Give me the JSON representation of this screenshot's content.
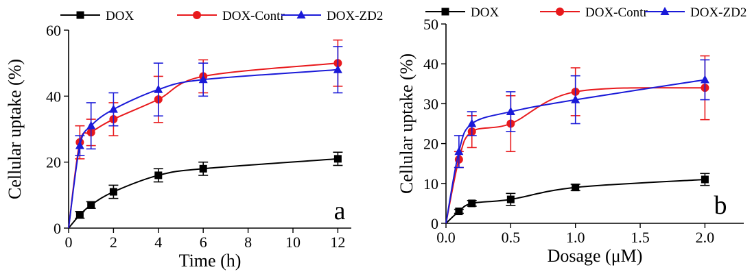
{
  "chart_data": [
    {
      "type": "line",
      "panel_label": "a",
      "xlabel": "Time (h)",
      "ylabel": "Cellular uptake (%)",
      "xlim": [
        0,
        12.6
      ],
      "ylim": [
        0,
        60
      ],
      "xticks": [
        0,
        2,
        4,
        6,
        8,
        10,
        12
      ],
      "xtick_labels": [
        "0",
        "2",
        "4",
        "6",
        "8",
        "10",
        "12"
      ],
      "yticks": [
        0,
        20,
        40,
        60
      ],
      "ytick_labels": [
        "0",
        "20",
        "40",
        "60"
      ],
      "grid": false,
      "legend_position": "top",
      "series": [
        {
          "name": "DOX",
          "color": "#000000",
          "marker": "square",
          "x": [
            0,
            0.5,
            1,
            2,
            4,
            6,
            12
          ],
          "y": [
            0,
            4,
            7,
            11,
            16,
            18,
            21
          ],
          "err": [
            0,
            1,
            1,
            2,
            2,
            2,
            2
          ]
        },
        {
          "name": "DOX-Contr",
          "color": "#e8191c",
          "marker": "circle",
          "x": [
            0,
            0.5,
            1,
            2,
            4,
            6,
            12
          ],
          "y": [
            0,
            26,
            29,
            33,
            39,
            46,
            50
          ],
          "err": [
            0,
            5,
            4,
            5,
            7,
            5,
            7
          ]
        },
        {
          "name": "DOX-ZD2",
          "color": "#1a1ad8",
          "marker": "triangle",
          "x": [
            0,
            0.5,
            1,
            2,
            4,
            6,
            12
          ],
          "y": [
            0,
            25,
            31,
            36,
            42,
            45,
            48
          ],
          "err": [
            0,
            3,
            7,
            5,
            8,
            5,
            7
          ]
        }
      ]
    },
    {
      "type": "line",
      "panel_label": "b",
      "xlabel": "Dosage (μM)",
      "ylabel": "Cellular uptake (%)",
      "xlim": [
        0,
        2.3
      ],
      "ylim": [
        0,
        50
      ],
      "xticks": [
        0,
        0.5,
        1.0,
        1.5,
        2.0
      ],
      "xtick_labels": [
        "0.0",
        "0.5",
        "1.0",
        "1.5",
        "2.0"
      ],
      "yticks": [
        0,
        10,
        20,
        30,
        40,
        50
      ],
      "ytick_labels": [
        "0",
        "10",
        "20",
        "30",
        "40",
        "50"
      ],
      "grid": false,
      "legend_position": "top",
      "series": [
        {
          "name": "DOX",
          "color": "#000000",
          "marker": "square",
          "x": [
            0,
            0.1,
            0.2,
            0.5,
            1.0,
            2.0
          ],
          "y": [
            0,
            3,
            5,
            6,
            9,
            11
          ],
          "err": [
            0,
            0.5,
            0.7,
            1.5,
            0.8,
            1.5
          ]
        },
        {
          "name": "DOX-Contr",
          "color": "#e8191c",
          "marker": "circle",
          "x": [
            0,
            0.1,
            0.2,
            0.5,
            1.0,
            2.0
          ],
          "y": [
            0,
            16,
            23,
            25,
            33,
            34
          ],
          "err": [
            0,
            2,
            4,
            7,
            6,
            8
          ]
        },
        {
          "name": "DOX-ZD2",
          "color": "#1a1ad8",
          "marker": "triangle",
          "x": [
            0,
            0.1,
            0.2,
            0.5,
            1.0,
            2.0
          ],
          "y": [
            0,
            18,
            25,
            28,
            31,
            36
          ],
          "err": [
            0,
            4,
            3,
            5,
            6,
            5
          ]
        }
      ]
    }
  ]
}
